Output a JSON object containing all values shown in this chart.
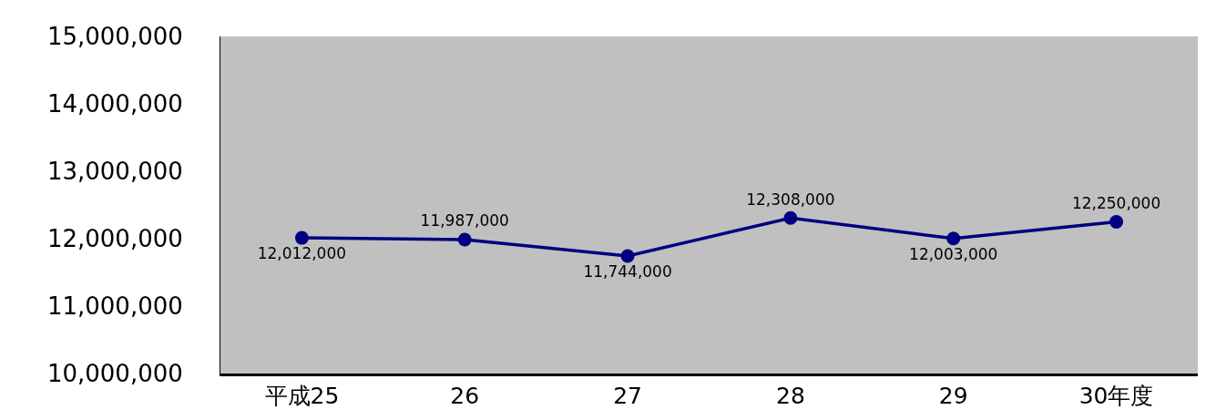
{
  "chart_data": {
    "type": "line",
    "categories": [
      "平成25",
      "26",
      "27",
      "28",
      "29",
      "30年度"
    ],
    "series": [
      {
        "color": "#000080",
        "values": [
          12012000,
          11987000,
          11744000,
          12308000,
          12003000,
          12250000
        ],
        "value_labels": [
          "12,012,000",
          "11,987,000",
          "11,744,000",
          "12,308,000",
          "12,003,000",
          "12,250,000"
        ]
      }
    ],
    "ylim": [
      10000000,
      15000000
    ],
    "yticks": [
      {
        "value": 10000000,
        "label": "10,000,000"
      },
      {
        "value": 11000000,
        "label": "11,000,000"
      },
      {
        "value": 12000000,
        "label": "12,000,000"
      },
      {
        "value": 13000000,
        "label": "13,000,000"
      },
      {
        "value": 14000000,
        "label": "14,000,000"
      },
      {
        "value": 15000000,
        "label": "15,000,000"
      }
    ],
    "marker": "circle",
    "line_style": "solid",
    "grid": false,
    "legend": false
  }
}
